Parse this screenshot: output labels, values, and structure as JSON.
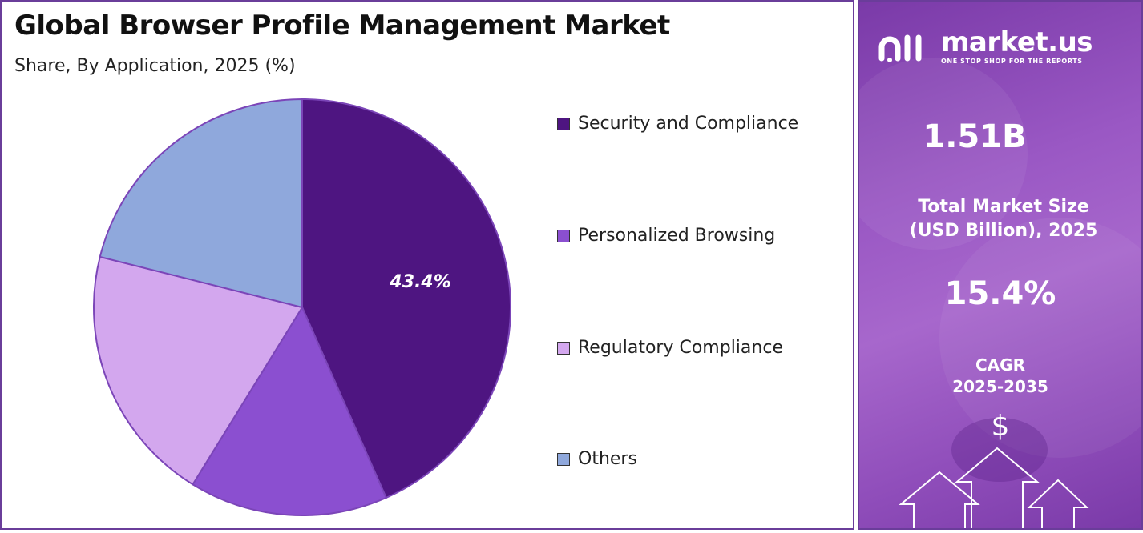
{
  "chart_data": {
    "type": "pie",
    "title": "Global Browser Profile Management Market",
    "subtitle": "Share, By Application, 2025 (%)",
    "slices": [
      {
        "name": "Security and Compliance",
        "value": 43.4,
        "color": "#4e1581",
        "label": "43.4%"
      },
      {
        "name": "Personalized Browsing",
        "value": 15.4,
        "color": "#8b4fd0",
        "label": ""
      },
      {
        "name": "Regulatory Compliance",
        "value": 20.1,
        "color": "#d3a7ee",
        "label": ""
      },
      {
        "name": "Others",
        "value": 21.1,
        "color": "#8fa8dc",
        "label": ""
      }
    ],
    "legend_position": "right"
  },
  "sidebar": {
    "brand": "market.us",
    "tagline": "ONE STOP SHOP FOR THE REPORTS",
    "market_size_value": "1.51B",
    "market_size_label_1": "Total Market Size",
    "market_size_label_2": "(USD Billion), 2025",
    "cagr_value": "15.4%",
    "cagr_label_1": "CAGR",
    "cagr_label_2": "2025-2035",
    "dollar_symbol": "$"
  }
}
